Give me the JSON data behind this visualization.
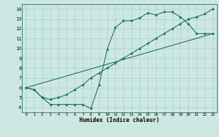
{
  "xlabel": "Humidex (Indice chaleur)",
  "bg_color": "#cce8e0",
  "line_color": "#1a6e60",
  "grid_color": "#aad4cc",
  "xlim": [
    -0.5,
    23.5
  ],
  "ylim": [
    3.5,
    14.5
  ],
  "xticks": [
    0,
    1,
    2,
    3,
    4,
    5,
    6,
    7,
    8,
    9,
    10,
    11,
    12,
    13,
    14,
    15,
    16,
    17,
    18,
    19,
    20,
    21,
    22,
    23
  ],
  "yticks": [
    4,
    5,
    6,
    7,
    8,
    9,
    10,
    11,
    12,
    13,
    14
  ],
  "series": [
    {
      "x": [
        0,
        1,
        2,
        3,
        4,
        5,
        6,
        7,
        8,
        9,
        10,
        11,
        12,
        13,
        14,
        15,
        16,
        17,
        18,
        19,
        20,
        21,
        22,
        23
      ],
      "y": [
        6.0,
        5.8,
        5.0,
        4.3,
        4.3,
        4.3,
        4.3,
        4.3,
        3.9,
        6.3,
        9.9,
        12.1,
        12.8,
        12.8,
        13.1,
        13.6,
        13.4,
        13.7,
        13.7,
        13.2,
        12.5,
        11.5,
        11.5,
        11.5
      ],
      "marker": true
    },
    {
      "x": [
        0,
        1,
        2,
        3,
        4,
        5,
        6,
        7,
        8,
        9,
        10,
        11,
        12,
        13,
        14,
        15,
        16,
        17,
        18,
        19,
        20,
        21,
        22,
        23
      ],
      "y": [
        6.0,
        5.8,
        5.0,
        4.8,
        5.0,
        5.3,
        5.8,
        6.3,
        7.0,
        7.5,
        8.0,
        8.5,
        9.0,
        9.5,
        10.0,
        10.5,
        11.0,
        11.5,
        12.0,
        12.5,
        13.0,
        13.2,
        13.5,
        14.0
      ],
      "marker": true
    },
    {
      "x": [
        0,
        23
      ],
      "y": [
        6.0,
        11.5
      ],
      "marker": false
    }
  ]
}
